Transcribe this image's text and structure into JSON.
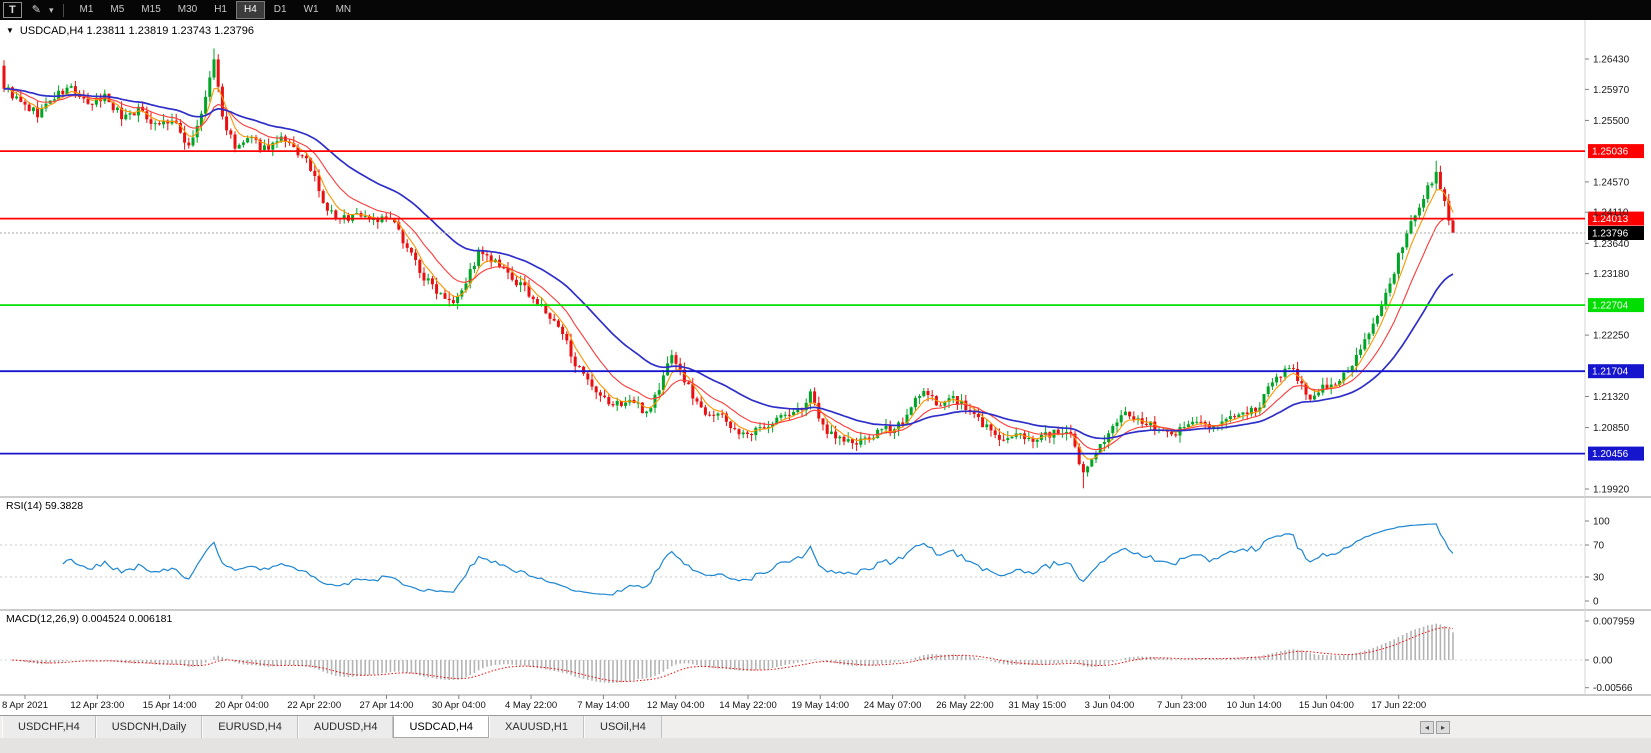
{
  "toolbar": {
    "t_button_label": "T",
    "timeframes": [
      "M1",
      "M5",
      "M15",
      "M30",
      "H1",
      "H4",
      "D1",
      "W1",
      "MN"
    ],
    "active_timeframe": "H4"
  },
  "icons": {
    "collapse": "▼",
    "draw_tool": "✎",
    "dropdown": "▾",
    "tab_scroll_left": "◂",
    "tab_scroll_right": "▸"
  },
  "symbol_header": {
    "text": "USDCAD,H4 1.23811 1.23819 1.23743 1.23796"
  },
  "chart_data": {
    "type": "candlestick",
    "symbol": "USDCAD",
    "timeframe": "H4",
    "ohlc_header": {
      "open": "1.23811",
      "high": "1.23819",
      "low": "1.23743",
      "close": "1.23796"
    },
    "up_color": "#00A525",
    "down_color": "#E81010",
    "price_axis_ticks": [
      "1.26430",
      "1.25970",
      "1.25500",
      "1.24570",
      "1.24110",
      "1.23640",
      "1.23180",
      "1.22250",
      "1.21320",
      "1.20850",
      "1.19920"
    ],
    "horizontal_lines": [
      {
        "price": 1.25036,
        "label": "1.25036",
        "color": "#FF0000"
      },
      {
        "price": 1.24013,
        "label": "1.24013",
        "color": "#FF0000"
      },
      {
        "price": 1.22704,
        "label": "1.22704",
        "color": "#00DD00"
      },
      {
        "price": 1.21704,
        "label": "1.21704",
        "color": "#1515CD"
      },
      {
        "price": 1.20456,
        "label": "1.20456",
        "color": "#1515CD"
      }
    ],
    "current_price": {
      "value": 1.23796,
      "label": "1.23796"
    },
    "candles": {
      "count": 346,
      "seed": 9,
      "noise": 0.0014,
      "wick": 0.0011,
      "close_path": [
        [
          0,
          1.2602
        ],
        [
          4,
          1.2575
        ],
        [
          8,
          1.256
        ],
        [
          12,
          1.2585
        ],
        [
          16,
          1.26
        ],
        [
          20,
          1.257
        ],
        [
          24,
          1.2588
        ],
        [
          28,
          1.2556
        ],
        [
          32,
          1.2566
        ],
        [
          36,
          1.2546
        ],
        [
          40,
          1.2549
        ],
        [
          44,
          1.2512
        ],
        [
          47,
          1.2556
        ],
        [
          50,
          1.2642
        ],
        [
          52,
          1.2556
        ],
        [
          55,
          1.2506
        ],
        [
          58,
          1.2521
        ],
        [
          62,
          1.2509
        ],
        [
          66,
          1.2519
        ],
        [
          70,
          1.2501
        ],
        [
          73,
          1.2479
        ],
        [
          76,
          1.2421
        ],
        [
          80,
          1.2399
        ],
        [
          84,
          1.2409
        ],
        [
          88,
          1.2401
        ],
        [
          92,
          1.2399
        ],
        [
          96,
          1.2361
        ],
        [
          100,
          1.2311
        ],
        [
          104,
          1.2289
        ],
        [
          107,
          1.2279
        ],
        [
          110,
          1.2306
        ],
        [
          113,
          1.2349
        ],
        [
          117,
          1.2333
        ],
        [
          121,
          1.2309
        ],
        [
          125,
          1.2289
        ],
        [
          129,
          1.2259
        ],
        [
          133,
          1.2226
        ],
        [
          137,
          1.2171
        ],
        [
          141,
          1.2133
        ],
        [
          145,
          1.2119
        ],
        [
          149,
          1.2126
        ],
        [
          153,
          1.2109
        ],
        [
          156,
          1.2143
        ],
        [
          159,
          1.2199
        ],
        [
          162,
          1.2156
        ],
        [
          166,
          1.2113
        ],
        [
          170,
          1.2106
        ],
        [
          174,
          1.2083
        ],
        [
          177,
          1.2069
        ],
        [
          181,
          1.2089
        ],
        [
          185,
          1.2101
        ],
        [
          189,
          1.2109
        ],
        [
          192,
          1.2133
        ],
        [
          195,
          1.2086
        ],
        [
          199,
          1.2069
        ],
        [
          203,
          1.2059
        ],
        [
          207,
          1.2073
        ],
        [
          211,
          1.2083
        ],
        [
          215,
          1.2099
        ],
        [
          218,
          1.2139
        ],
        [
          222,
          1.2123
        ],
        [
          226,
          1.2129
        ],
        [
          230,
          1.2109
        ],
        [
          234,
          1.2086
        ],
        [
          238,
          1.2063
        ],
        [
          242,
          1.2073
        ],
        [
          246,
          1.2069
        ],
        [
          250,
          1.2079
        ],
        [
          254,
          1.2069
        ],
        [
          257,
          1.2013
        ],
        [
          260,
          1.2053
        ],
        [
          263,
          1.2073
        ],
        [
          267,
          1.2109
        ],
        [
          271,
          1.2093
        ],
        [
          275,
          1.2083
        ],
        [
          279,
          1.2079
        ],
        [
          283,
          1.2093
        ],
        [
          287,
          1.2087
        ],
        [
          291,
          1.2097
        ],
        [
          295,
          1.2101
        ],
        [
          299,
          1.2119
        ],
        [
          303,
          1.2166
        ],
        [
          307,
          1.2173
        ],
        [
          311,
          1.2129
        ],
        [
          314,
          1.2143
        ],
        [
          318,
          1.2159
        ],
        [
          322,
          1.2189
        ],
        [
          326,
          1.2239
        ],
        [
          330,
          1.2306
        ],
        [
          334,
          1.2379
        ],
        [
          338,
          1.2433
        ],
        [
          341,
          1.2469
        ],
        [
          343,
          1.2426
        ],
        [
          345,
          1.238
        ]
      ],
      "wick_events": [
        {
          "i": 0,
          "high": 1.2641
        },
        {
          "i": 50,
          "high": 1.2659
        },
        {
          "i": 257,
          "low": 1.1993
        },
        {
          "i": 341,
          "high": 1.2489
        }
      ]
    },
    "moving_averages": [
      {
        "name": "fast-orange",
        "period": 5,
        "type": "ema",
        "color": "#FF9500",
        "width": 1.1
      },
      {
        "name": "mid-red",
        "period": 13,
        "type": "ema",
        "color": "#FF3A3A",
        "width": 1.1
      },
      {
        "name": "slow-blue",
        "period": 34,
        "type": "ema",
        "color": "#2E2EC9",
        "width": 1.7
      }
    ],
    "time_axis": [
      "8 Apr 2021",
      "12 Apr 23:00",
      "15 Apr 14:00",
      "20 Apr 04:00",
      "22 Apr 22:00",
      "27 Apr 14:00",
      "30 Apr 04:00",
      "4 May 22:00",
      "7 May 14:00",
      "12 May 04:00",
      "14 May 22:00",
      "19 May 14:00",
      "24 May 07:00",
      "26 May 22:00",
      "31 May 15:00",
      "3 Jun 04:00",
      "7 Jun 23:00",
      "10 Jun 14:00",
      "15 Jun 04:00",
      "17 Jun 22:00"
    ],
    "indicators": {
      "rsi": {
        "label": "RSI(14) 59.3828",
        "period": 14,
        "current_value": 59.3828,
        "color": "#1E87D2",
        "levels": [
          {
            "label": "100",
            "value": 100,
            "line": false
          },
          {
            "label": "70",
            "value": 70,
            "line": true
          },
          {
            "label": "30",
            "value": 30,
            "line": true
          },
          {
            "label": "0",
            "value": 0,
            "line": false
          }
        ]
      },
      "macd": {
        "label": "MACD(12,26,9) 0.004524 0.006181",
        "fast": 12,
        "slow": 26,
        "signal": 9,
        "current_main": 0.004524,
        "current_signal": 0.006181,
        "histogram_color": "#B4B4B4",
        "signal_color": "#FF0000",
        "axis": [
          {
            "label": "0.007959",
            "value": 0.007959
          },
          {
            "label": "0.00",
            "value": 0
          },
          {
            "label": "-0.00566",
            "value": -0.00566
          }
        ]
      }
    }
  },
  "tabs": {
    "items": [
      "USDCHF,H4",
      "USDCNH,Daily",
      "EURUSD,H4",
      "AUDUSD,H4",
      "USDCAD,H4",
      "XAUUSD,H1",
      "USOil,H4"
    ],
    "active": "USDCAD,H4"
  }
}
